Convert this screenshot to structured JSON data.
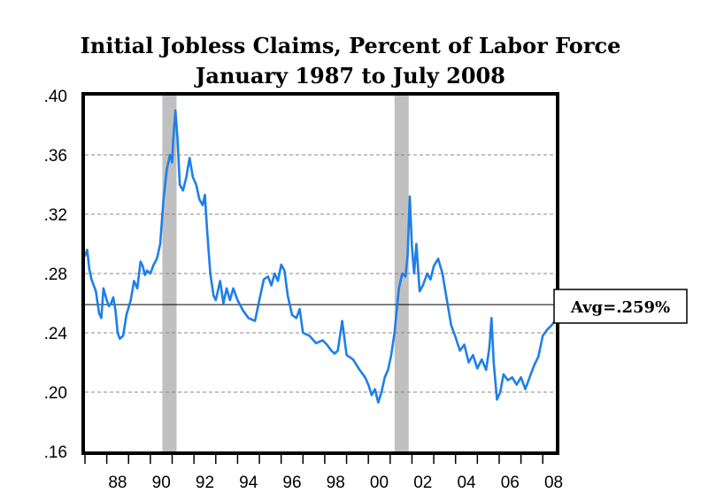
{
  "chart_data": {
    "type": "line",
    "title": "Initial Jobless Claims, Percent of Labor Force",
    "subtitle": "January 1987 to July 2008",
    "x_range": [
      1987.0,
      2008.6
    ],
    "ylim": [
      0.16,
      0.4
    ],
    "y_ticks": [
      ".16",
      ".20",
      ".24",
      ".28",
      ".32",
      ".36",
      ".40"
    ],
    "y_tick_values": [
      0.16,
      0.2,
      0.24,
      0.28,
      0.32,
      0.36,
      0.4
    ],
    "x_ticks": [
      "88",
      "90",
      "92",
      "94",
      "96",
      "98",
      "00",
      "02",
      "04",
      "06",
      "08"
    ],
    "x_tick_years": [
      1988,
      1990,
      1992,
      1994,
      1996,
      1998,
      2000,
      2002,
      2004,
      2006,
      2008
    ],
    "grid": true,
    "recessions": [
      [
        1990.55,
        1991.2
      ],
      [
        2001.2,
        2001.85
      ]
    ],
    "average": 0.259,
    "average_label": "Avg=.259%",
    "line_color": "#1e7fe8",
    "recession_color": "#c0c0c0",
    "series": [
      {
        "x": [
          1987.0,
          1987.1,
          1987.2,
          1987.3,
          1987.5,
          1987.65,
          1987.75,
          1987.85,
          1988.0,
          1988.1,
          1988.2,
          1988.3,
          1988.4,
          1988.5,
          1988.6,
          1988.75,
          1988.9,
          1989.0,
          1989.1,
          1989.25,
          1989.4,
          1989.55,
          1989.65,
          1989.75,
          1989.85,
          1990.0,
          1990.15,
          1990.3,
          1990.45,
          1990.6,
          1990.75,
          1990.9,
          1991.0,
          1991.05,
          1991.15,
          1991.25,
          1991.35,
          1991.5,
          1991.65,
          1991.8,
          1991.95,
          1992.1,
          1992.25,
          1992.4,
          1992.5,
          1992.6,
          1992.75,
          1992.9,
          1993.0,
          1993.2,
          1993.35,
          1993.5,
          1993.65,
          1993.8,
          1994.0,
          1994.25,
          1994.5,
          1994.8,
          1995.0,
          1995.2,
          1995.4,
          1995.55,
          1995.7,
          1995.85,
          1996.0,
          1996.15,
          1996.3,
          1996.5,
          1996.7,
          1996.85,
          1997.0,
          1997.3,
          1997.6,
          1997.9,
          1998.1,
          1998.3,
          1998.45,
          1998.6,
          1998.8,
          1999.0,
          1999.3,
          1999.6,
          1999.85,
          2000.0,
          2000.15,
          2000.3,
          2000.45,
          2000.6,
          2000.75,
          2000.9,
          2001.05,
          2001.2,
          2001.4,
          2001.55,
          2001.7,
          2001.8,
          2001.9,
          2002.0,
          2002.1,
          2002.2,
          2002.35,
          2002.5,
          2002.7,
          2002.85,
          2003.0,
          2003.2,
          2003.4,
          2003.6,
          2003.8,
          2004.0,
          2004.2,
          2004.4,
          2004.6,
          2004.8,
          2005.0,
          2005.2,
          2005.4,
          2005.55,
          2005.65,
          2005.75,
          2005.9,
          2006.05,
          2006.2,
          2006.4,
          2006.6,
          2006.8,
          2007.0,
          2007.2,
          2007.4,
          2007.6,
          2007.8,
          2008.0,
          2008.2,
          2008.4,
          2008.55
        ],
        "values": [
          0.292,
          0.296,
          0.283,
          0.276,
          0.268,
          0.253,
          0.25,
          0.27,
          0.262,
          0.258,
          0.26,
          0.264,
          0.255,
          0.24,
          0.236,
          0.238,
          0.252,
          0.257,
          0.262,
          0.275,
          0.27,
          0.288,
          0.285,
          0.279,
          0.282,
          0.28,
          0.286,
          0.29,
          0.3,
          0.33,
          0.35,
          0.36,
          0.355,
          0.37,
          0.39,
          0.37,
          0.34,
          0.336,
          0.345,
          0.358,
          0.345,
          0.34,
          0.33,
          0.326,
          0.333,
          0.31,
          0.28,
          0.265,
          0.262,
          0.275,
          0.26,
          0.27,
          0.262,
          0.27,
          0.262,
          0.255,
          0.25,
          0.248,
          0.262,
          0.276,
          0.278,
          0.272,
          0.28,
          0.275,
          0.286,
          0.282,
          0.265,
          0.252,
          0.25,
          0.256,
          0.24,
          0.238,
          0.233,
          0.235,
          0.232,
          0.228,
          0.226,
          0.228,
          0.248,
          0.225,
          0.222,
          0.215,
          0.21,
          0.205,
          0.198,
          0.202,
          0.193,
          0.2,
          0.21,
          0.215,
          0.225,
          0.24,
          0.27,
          0.28,
          0.278,
          0.292,
          0.332,
          0.298,
          0.28,
          0.3,
          0.268,
          0.272,
          0.28,
          0.276,
          0.285,
          0.29,
          0.28,
          0.262,
          0.245,
          0.237,
          0.228,
          0.232,
          0.22,
          0.225,
          0.216,
          0.222,
          0.215,
          0.23,
          0.25,
          0.22,
          0.195,
          0.2,
          0.212,
          0.208,
          0.21,
          0.205,
          0.21,
          0.202,
          0.21,
          0.218,
          0.224,
          0.238,
          0.242,
          0.245,
          0.248
        ]
      }
    ]
  }
}
